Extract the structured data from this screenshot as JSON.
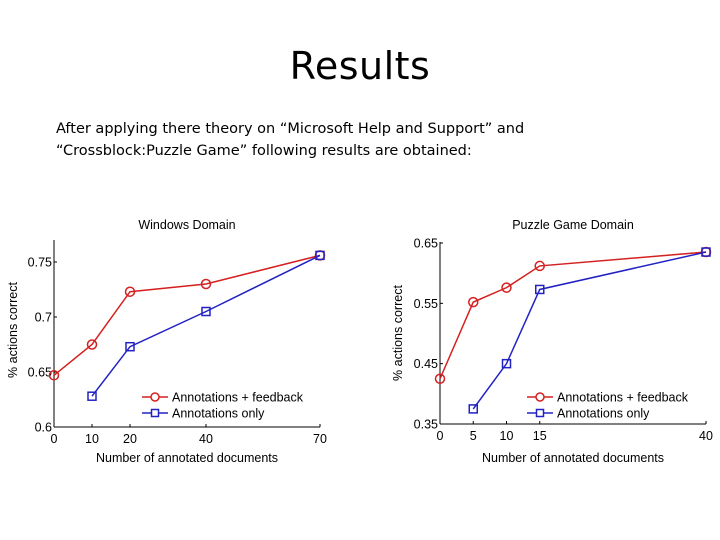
{
  "slide": {
    "title": "Results",
    "body_lines": [
      "After applying there theory on “Microsoft Help and Support” and",
      "“Crossblock:Puzzle Game” following results are obtained:"
    ]
  },
  "colors": {
    "feedback": "#d42020",
    "only": "#2222c4",
    "axis": "#000000"
  },
  "chart_data": [
    {
      "type": "line",
      "title": "Windows Domain",
      "xlabel": "Number of annotated documents",
      "ylabel": "% actions correct",
      "xlim": [
        0,
        70
      ],
      "ylim": [
        0.6,
        0.77
      ],
      "xticks": [
        0,
        10,
        20,
        40,
        70
      ],
      "yticks": [
        0.6,
        0.65,
        0.7,
        0.75
      ],
      "ytick_labels": [
        "0.6",
        "0.65",
        "0.7",
        "0.75"
      ],
      "grid": false,
      "legend_position": "lower right",
      "series": [
        {
          "name": "Annotations + feedback",
          "marker": "circle",
          "color": "#d42020",
          "x": [
            0,
            10,
            20,
            40,
            70
          ],
          "values": [
            0.647,
            0.675,
            0.723,
            0.73,
            0.756
          ]
        },
        {
          "name": "Annotations only",
          "marker": "square",
          "color": "#2222c4",
          "x": [
            10,
            20,
            40,
            70
          ],
          "values": [
            0.628,
            0.673,
            0.705,
            0.756
          ]
        }
      ]
    },
    {
      "type": "line",
      "title": "Puzzle Game Domain",
      "xlabel": "Number of annotated documents",
      "ylabel": "% actions correct",
      "xlim": [
        0,
        40
      ],
      "ylim": [
        0.35,
        0.65
      ],
      "xticks": [
        0,
        5,
        10,
        15,
        40
      ],
      "yticks": [
        0.35,
        0.45,
        0.55,
        0.65
      ],
      "ytick_labels": [
        "0.35",
        "0.45",
        "0.55",
        "0.65"
      ],
      "grid": false,
      "legend_position": "lower right",
      "series": [
        {
          "name": "Annotations + feedback",
          "marker": "circle",
          "color": "#d42020",
          "x": [
            0,
            5,
            10,
            15,
            40
          ],
          "values": [
            0.425,
            0.552,
            0.576,
            0.612,
            0.635
          ]
        },
        {
          "name": "Annotations only",
          "marker": "square",
          "color": "#2222c4",
          "x": [
            5,
            10,
            15,
            40
          ],
          "values": [
            0.375,
            0.45,
            0.573,
            0.635
          ]
        }
      ]
    }
  ]
}
